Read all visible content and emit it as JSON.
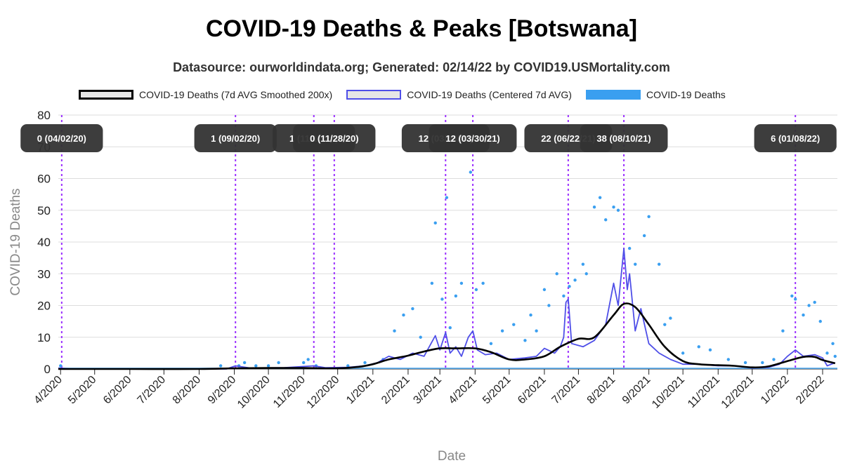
{
  "chart_data": {
    "type": "line",
    "title": "COVID-19 Deaths & Peaks [Botswana]",
    "subtitle": "Datasource: ourworldindata.org; Generated: 02/14/22 by COVID19.USMortality.com",
    "xlabel": "Date",
    "ylabel": "COVID-19 Deaths",
    "ylim": [
      0,
      80
    ],
    "yticks": [
      0,
      10,
      20,
      30,
      40,
      50,
      60,
      70,
      80
    ],
    "xlim": [
      "2020-03-30",
      "2022-02-14"
    ],
    "grid": true,
    "legend_position": "top",
    "x_ticks": [
      {
        "date": "2020-04-01",
        "label": "4/2020"
      },
      {
        "date": "2020-05-01",
        "label": "5/2020"
      },
      {
        "date": "2020-06-01",
        "label": "6/2020"
      },
      {
        "date": "2020-07-01",
        "label": "7/2020"
      },
      {
        "date": "2020-08-01",
        "label": "8/2020"
      },
      {
        "date": "2020-09-01",
        "label": "9/2020"
      },
      {
        "date": "2020-10-01",
        "label": "10/2020"
      },
      {
        "date": "2020-11-01",
        "label": "11/2020"
      },
      {
        "date": "2020-12-01",
        "label": "12/2020"
      },
      {
        "date": "2021-01-01",
        "label": "1/2021"
      },
      {
        "date": "2021-02-01",
        "label": "2/2021"
      },
      {
        "date": "2021-03-01",
        "label": "3/2021"
      },
      {
        "date": "2021-04-01",
        "label": "4/2021"
      },
      {
        "date": "2021-05-01",
        "label": "5/2021"
      },
      {
        "date": "2021-06-01",
        "label": "6/2021"
      },
      {
        "date": "2021-07-01",
        "label": "7/2021"
      },
      {
        "date": "2021-08-01",
        "label": "8/2021"
      },
      {
        "date": "2021-09-01",
        "label": "9/2021"
      },
      {
        "date": "2021-10-01",
        "label": "10/2021"
      },
      {
        "date": "2021-11-01",
        "label": "11/2021"
      },
      {
        "date": "2021-12-01",
        "label": "12/2021"
      },
      {
        "date": "2022-01-01",
        "label": "1/2022"
      },
      {
        "date": "2022-02-01",
        "label": "2/2022"
      }
    ],
    "peaks": [
      {
        "date": "2020-04-02",
        "label": "0 (04/02/20)",
        "line": true
      },
      {
        "date": "2020-09-02",
        "label": "1 (09/02/20)",
        "line": true
      },
      {
        "date": "2020-11-10",
        "label": "1 (11/10/20)",
        "line": true
      },
      {
        "date": "2020-11-28",
        "label": "0 (11/28/20)",
        "line": true
      },
      {
        "date": "2021-03-06",
        "label": "12 (03/06/21)",
        "line": true
      },
      {
        "date": "2021-03-30",
        "label": "12 (03/30/21)",
        "line": true
      },
      {
        "date": "2021-06-22",
        "label": "22 (06/22/21)",
        "line": true
      },
      {
        "date": "2021-08-10",
        "label": "38 (08/10/21)",
        "line": true
      },
      {
        "date": "2022-01-08",
        "label": "6 (01/08/22)",
        "line": true
      }
    ],
    "series": [
      {
        "name": "COVID-19 Deaths (7d AVG Smoothed 200x)",
        "color": "#000000",
        "style": "smooth-line",
        "points": [
          [
            "2020-03-30",
            0
          ],
          [
            "2020-06-01",
            0
          ],
          [
            "2020-08-01",
            0
          ],
          [
            "2020-09-01",
            0.2
          ],
          [
            "2020-10-01",
            0.3
          ],
          [
            "2020-11-01",
            0.3
          ],
          [
            "2020-12-01",
            0.2
          ],
          [
            "2020-12-20",
            0.7
          ],
          [
            "2021-01-01",
            1.5
          ],
          [
            "2021-01-15",
            3
          ],
          [
            "2021-02-01",
            4.2
          ],
          [
            "2021-02-15",
            5.5
          ],
          [
            "2021-03-01",
            6.5
          ],
          [
            "2021-03-15",
            6.5
          ],
          [
            "2021-04-01",
            6.5
          ],
          [
            "2021-04-15",
            5.3
          ],
          [
            "2021-05-01",
            3
          ],
          [
            "2021-05-15",
            3
          ],
          [
            "2021-06-01",
            4
          ],
          [
            "2021-06-15",
            7
          ],
          [
            "2021-07-01",
            9.5
          ],
          [
            "2021-07-15",
            10
          ],
          [
            "2021-08-01",
            17
          ],
          [
            "2021-08-10",
            20.5
          ],
          [
            "2021-08-20",
            19.5
          ],
          [
            "2021-09-01",
            14
          ],
          [
            "2021-09-15",
            7
          ],
          [
            "2021-10-01",
            2.5
          ],
          [
            "2021-10-15",
            1.5
          ],
          [
            "2021-11-01",
            1.2
          ],
          [
            "2021-11-15",
            1
          ],
          [
            "2021-12-01",
            0.5
          ],
          [
            "2021-12-15",
            0.8
          ],
          [
            "2022-01-01",
            2.5
          ],
          [
            "2022-01-15",
            3.8
          ],
          [
            "2022-01-25",
            3.8
          ],
          [
            "2022-02-01",
            2.8
          ],
          [
            "2022-02-12",
            1.8
          ]
        ]
      },
      {
        "name": "COVID-19 Deaths (Centered 7d AVG)",
        "color": "#4f4fe8",
        "style": "line",
        "points": [
          [
            "2020-03-30",
            0.3
          ],
          [
            "2020-04-10",
            0
          ],
          [
            "2020-08-25",
            0
          ],
          [
            "2020-09-02",
            1
          ],
          [
            "2020-09-15",
            0.3
          ],
          [
            "2020-10-15",
            0.4
          ],
          [
            "2020-11-10",
            1
          ],
          [
            "2020-11-20",
            0.4
          ],
          [
            "2020-12-10",
            0.5
          ],
          [
            "2020-12-25",
            1
          ],
          [
            "2021-01-05",
            2
          ],
          [
            "2021-01-15",
            4
          ],
          [
            "2021-01-25",
            3
          ],
          [
            "2021-02-05",
            5
          ],
          [
            "2021-02-15",
            4
          ],
          [
            "2021-02-25",
            10.5
          ],
          [
            "2021-03-01",
            6
          ],
          [
            "2021-03-06",
            11.5
          ],
          [
            "2021-03-10",
            5
          ],
          [
            "2021-03-15",
            7
          ],
          [
            "2021-03-20",
            4
          ],
          [
            "2021-03-26",
            10
          ],
          [
            "2021-03-30",
            12
          ],
          [
            "2021-04-03",
            6
          ],
          [
            "2021-04-10",
            4.5
          ],
          [
            "2021-04-20",
            5
          ],
          [
            "2021-05-01",
            3
          ],
          [
            "2021-05-15",
            3.5
          ],
          [
            "2021-05-25",
            4
          ],
          [
            "2021-06-01",
            6.5
          ],
          [
            "2021-06-10",
            5
          ],
          [
            "2021-06-15",
            7
          ],
          [
            "2021-06-18",
            10
          ],
          [
            "2021-06-20",
            21
          ],
          [
            "2021-06-22",
            22
          ],
          [
            "2021-06-25",
            8
          ],
          [
            "2021-07-05",
            7
          ],
          [
            "2021-07-15",
            9
          ],
          [
            "2021-07-25",
            14
          ],
          [
            "2021-08-01",
            27
          ],
          [
            "2021-08-05",
            20
          ],
          [
            "2021-08-10",
            38
          ],
          [
            "2021-08-13",
            25
          ],
          [
            "2021-08-15",
            30
          ],
          [
            "2021-08-20",
            12
          ],
          [
            "2021-08-25",
            19
          ],
          [
            "2021-09-01",
            8
          ],
          [
            "2021-09-10",
            5
          ],
          [
            "2021-09-20",
            3
          ],
          [
            "2021-10-01",
            1.5
          ],
          [
            "2021-10-15",
            1.5
          ],
          [
            "2021-11-01",
            1
          ],
          [
            "2021-11-15",
            1
          ],
          [
            "2021-12-01",
            0.3
          ],
          [
            "2021-12-15",
            0.5
          ],
          [
            "2021-12-25",
            1.5
          ],
          [
            "2022-01-01",
            4
          ],
          [
            "2022-01-08",
            6
          ],
          [
            "2022-01-15",
            4
          ],
          [
            "2022-01-25",
            4.5
          ],
          [
            "2022-02-01",
            3.5
          ],
          [
            "2022-02-05",
            1
          ],
          [
            "2022-02-12",
            2
          ]
        ]
      },
      {
        "name": "COVID-19 Deaths",
        "color": "#3a9ff0",
        "style": "scatter",
        "points": [
          [
            "2020-04-01",
            1
          ],
          [
            "2020-08-20",
            1
          ],
          [
            "2020-09-05",
            1
          ],
          [
            "2020-09-10",
            2
          ],
          [
            "2020-09-20",
            1
          ],
          [
            "2020-10-01",
            1
          ],
          [
            "2020-10-10",
            2
          ],
          [
            "2020-11-01",
            2
          ],
          [
            "2020-11-05",
            3
          ],
          [
            "2020-11-12",
            1
          ],
          [
            "2020-12-10",
            1
          ],
          [
            "2020-12-25",
            2
          ],
          [
            "2021-01-10",
            3
          ],
          [
            "2021-01-20",
            12
          ],
          [
            "2021-01-28",
            17
          ],
          [
            "2021-02-05",
            19
          ],
          [
            "2021-02-12",
            10
          ],
          [
            "2021-02-22",
            27
          ],
          [
            "2021-02-25",
            46
          ],
          [
            "2021-03-03",
            22
          ],
          [
            "2021-03-07",
            54
          ],
          [
            "2021-03-10",
            13
          ],
          [
            "2021-03-15",
            23
          ],
          [
            "2021-03-20",
            27
          ],
          [
            "2021-03-28",
            62
          ],
          [
            "2021-04-02",
            25
          ],
          [
            "2021-04-08",
            27
          ],
          [
            "2021-04-15",
            8
          ],
          [
            "2021-04-25",
            12
          ],
          [
            "2021-05-05",
            14
          ],
          [
            "2021-05-15",
            9
          ],
          [
            "2021-05-20",
            17
          ],
          [
            "2021-05-25",
            12
          ],
          [
            "2021-06-01",
            25
          ],
          [
            "2021-06-05",
            20
          ],
          [
            "2021-06-12",
            30
          ],
          [
            "2021-06-18",
            23
          ],
          [
            "2021-06-23",
            26
          ],
          [
            "2021-06-28",
            28
          ],
          [
            "2021-07-05",
            33
          ],
          [
            "2021-07-08",
            30
          ],
          [
            "2021-07-15",
            51
          ],
          [
            "2021-07-20",
            54
          ],
          [
            "2021-07-25",
            47
          ],
          [
            "2021-08-01",
            51
          ],
          [
            "2021-08-05",
            50
          ],
          [
            "2021-08-15",
            38
          ],
          [
            "2021-08-20",
            33
          ],
          [
            "2021-08-28",
            42
          ],
          [
            "2021-09-01",
            48
          ],
          [
            "2021-09-10",
            33
          ],
          [
            "2021-09-15",
            14
          ],
          [
            "2021-09-20",
            16
          ],
          [
            "2021-10-01",
            5
          ],
          [
            "2021-10-15",
            7
          ],
          [
            "2021-10-25",
            6
          ],
          [
            "2021-11-10",
            3
          ],
          [
            "2021-11-25",
            2
          ],
          [
            "2021-12-10",
            2
          ],
          [
            "2021-12-20",
            3
          ],
          [
            "2021-12-28",
            12
          ],
          [
            "2022-01-05",
            23
          ],
          [
            "2022-01-08",
            22
          ],
          [
            "2022-01-15",
            17
          ],
          [
            "2022-01-20",
            20
          ],
          [
            "2022-01-25",
            21
          ],
          [
            "2022-01-30",
            15
          ],
          [
            "2022-02-05",
            5
          ],
          [
            "2022-02-10",
            8
          ],
          [
            "2022-02-12",
            4
          ]
        ]
      }
    ]
  }
}
